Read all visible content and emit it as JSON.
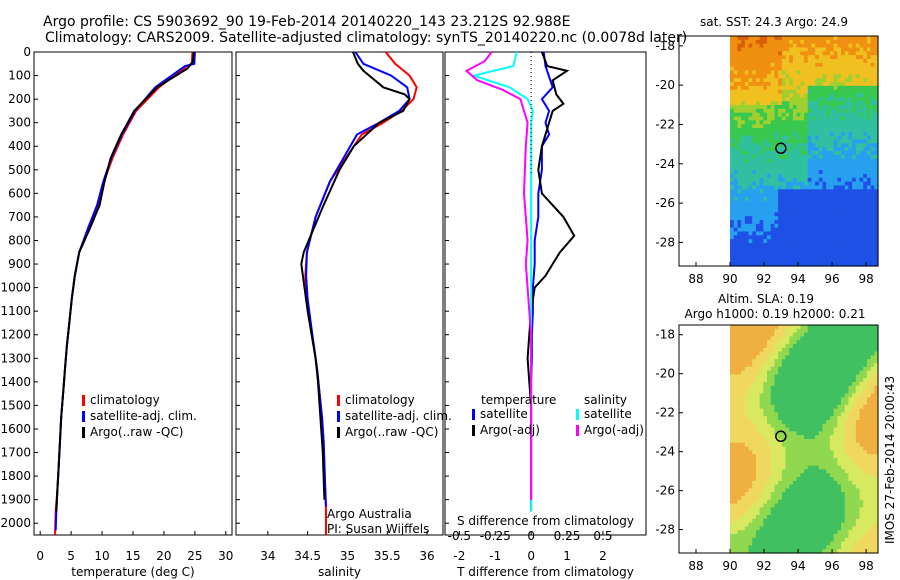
{
  "header": {
    "line1": "Argo profile: CS 5903692_90 19-Feb-2014 20140220_143 23.212S 92.988E",
    "line2": "Climatology: CARS2009. Satellite-adjusted climatology: synTS_20140220.nc (0.0078d later)"
  },
  "side_text": "IMOS 27-Feb-2014 20:00:43",
  "colors": {
    "climatology": "#ff0000",
    "satellite": "#0000ff",
    "argo": "#000000",
    "s_satellite": "#00ffff",
    "s_argo": "#ff00ff"
  },
  "chart_data": [
    {
      "type": "line",
      "id": "temperature",
      "xlabel": "temperature (deg C)",
      "xlim": [
        -1,
        31
      ],
      "xticks": [
        0,
        5,
        10,
        15,
        20,
        25,
        30
      ],
      "ylim": [
        0,
        2050
      ],
      "yticks": [
        0,
        100,
        200,
        300,
        400,
        500,
        600,
        700,
        800,
        900,
        1000,
        1100,
        1200,
        1300,
        1400,
        1500,
        1600,
        1700,
        1800,
        1900,
        2000
      ],
      "legend": [
        "climatology",
        "satellite-adj. clim.",
        "Argo(..raw -QC)"
      ],
      "series": [
        {
          "name": "climatology",
          "color": "#ff0000",
          "x": [
            24.6,
            24.5,
            23.7,
            19.2,
            15.5,
            13.4,
            11.7,
            10.3,
            9.3,
            7.8,
            6.3,
            5.6,
            5.1,
            4.7,
            4.3,
            4.0,
            3.7,
            3.4,
            3.2,
            3.0,
            2.8,
            2.5,
            2.4
          ],
          "y": [
            0,
            50,
            60,
            150,
            250,
            350,
            450,
            550,
            650,
            750,
            850,
            950,
            1050,
            1150,
            1250,
            1350,
            1450,
            1550,
            1650,
            1750,
            1850,
            1950,
            2050
          ]
        },
        {
          "name": "satellite-adj. clim.",
          "color": "#0000ff",
          "x": [
            25.0,
            24.9,
            23.4,
            18.6,
            15.3,
            13.2,
            11.5,
            10.2,
            9.2,
            7.7,
            6.3,
            5.6,
            5.1,
            4.7,
            4.3,
            4.0,
            3.7,
            3.4,
            3.2,
            3.0,
            2.8,
            2.6,
            2.5
          ],
          "y": [
            0,
            50,
            60,
            150,
            250,
            350,
            450,
            550,
            650,
            750,
            850,
            950,
            1050,
            1150,
            1250,
            1350,
            1450,
            1550,
            1650,
            1750,
            1850,
            1950,
            2030
          ]
        },
        {
          "name": "Argo(..raw -QC)",
          "color": "#000000",
          "x": [
            24.8,
            24.7,
            23.8,
            18.9,
            15.2,
            13.1,
            11.4,
            10.4,
            9.6,
            8.0,
            6.3,
            5.6,
            5.1,
            4.7,
            4.3,
            4.0,
            3.7,
            3.4,
            3.2,
            3.0,
            2.8,
            2.6
          ],
          "y": [
            0,
            40,
            70,
            150,
            250,
            350,
            450,
            550,
            650,
            750,
            850,
            950,
            1050,
            1150,
            1250,
            1350,
            1450,
            1550,
            1650,
            1750,
            1850,
            1950
          ]
        }
      ]
    },
    {
      "type": "line",
      "id": "salinity",
      "xlabel": "salinity",
      "xlim": [
        33.6,
        36.2
      ],
      "xticks": [
        34,
        34.5,
        35,
        35.5,
        36
      ],
      "ticklabels": [
        "34",
        "34.5",
        "35",
        "35.5",
        "36"
      ],
      "ylim": [
        0,
        2050
      ],
      "legend": [
        "climatology",
        "satellite-adj. clim.",
        "Argo(..raw -QC)"
      ],
      "annotation": [
        "Argo Australia",
        "PI: Susan Wijffels"
      ],
      "series": [
        {
          "name": "climatology",
          "color": "#ff0000",
          "x": [
            35.48,
            35.6,
            35.78,
            35.87,
            35.83,
            35.68,
            35.45,
            35.18,
            34.98,
            34.78,
            34.6,
            34.49,
            34.47,
            34.49,
            34.53,
            34.58,
            34.62,
            34.65,
            34.68,
            34.7,
            34.71,
            34.72,
            34.73,
            34.73
          ],
          "y": [
            0,
            50,
            100,
            150,
            200,
            250,
            300,
            350,
            450,
            550,
            700,
            850,
            950,
            1050,
            1150,
            1250,
            1350,
            1450,
            1550,
            1650,
            1750,
            1850,
            1950,
            2050
          ]
        },
        {
          "name": "satellite-adj. clim.",
          "color": "#0000ff",
          "x": [
            35.1,
            35.2,
            35.55,
            35.75,
            35.78,
            35.65,
            35.4,
            35.12,
            34.95,
            34.78,
            34.6,
            34.49,
            34.48,
            34.5,
            34.54,
            34.58,
            34.62,
            34.65,
            34.68,
            34.7,
            34.71,
            34.72,
            34.73
          ],
          "y": [
            0,
            50,
            100,
            150,
            200,
            250,
            300,
            350,
            450,
            550,
            700,
            850,
            950,
            1050,
            1150,
            1250,
            1350,
            1450,
            1550,
            1650,
            1750,
            1850,
            1930
          ]
        },
        {
          "name": "Argo(..raw -QC)",
          "color": "#000000",
          "x": [
            35.07,
            35.13,
            35.2,
            35.45,
            35.72,
            35.78,
            35.7,
            35.4,
            35.08,
            34.9,
            34.7,
            34.45,
            34.42,
            34.46,
            34.5,
            34.55,
            34.6,
            34.63,
            34.65,
            34.67,
            34.69,
            34.7,
            34.71
          ],
          "y": [
            0,
            50,
            80,
            150,
            180,
            200,
            250,
            300,
            400,
            500,
            650,
            850,
            900,
            1000,
            1100,
            1200,
            1300,
            1400,
            1500,
            1600,
            1700,
            1800,
            1900
          ]
        }
      ]
    },
    {
      "type": "line",
      "id": "difference",
      "xlabel": "T difference from climatology",
      "title_bottom": "S difference from climatology",
      "xlim": [
        -2.4,
        3.2
      ],
      "xticks": [
        -2,
        -1,
        0,
        1,
        2
      ],
      "s_ticks": [
        "-0.5",
        "-0.25",
        "0",
        "0.25",
        "0.5"
      ],
      "ylim": [
        0,
        2050
      ],
      "legend_headers": [
        "temperature",
        "salinity"
      ],
      "legend_temperature": [
        "satellite",
        "Argo(-adj)"
      ],
      "legend_salinity": [
        "satellite",
        "Argo(-adj)"
      ],
      "series": [
        {
          "name": "T satellite",
          "color": "#0000ff",
          "x": [
            0.35,
            0.4,
            0.6,
            0.3,
            0.5,
            0.4,
            0.5,
            0.3,
            0.3,
            0.2,
            0.2,
            0.1,
            0.1,
            0.05,
            0.05,
            0.02,
            0.02,
            0.0,
            0.0,
            0.0,
            0.0
          ],
          "y": [
            0,
            60,
            150,
            200,
            250,
            300,
            350,
            400,
            500,
            600,
            700,
            800,
            900,
            1000,
            1100,
            1200,
            1300,
            1400,
            1500,
            1700,
            1900
          ]
        },
        {
          "name": "T Argo(-adj)",
          "color": "#000000",
          "x": [
            0.3,
            0.45,
            1.0,
            0.6,
            0.7,
            0.9,
            0.6,
            0.5,
            0.3,
            0.2,
            0.3,
            0.9,
            1.2,
            0.8,
            0.6,
            0.4,
            0.1,
            0.0,
            -0.05,
            -0.1,
            -0.05,
            0.0,
            0.0,
            0.0
          ],
          "y": [
            0,
            60,
            80,
            120,
            180,
            220,
            250,
            300,
            400,
            500,
            600,
            700,
            780,
            850,
            900,
            950,
            1000,
            1100,
            1200,
            1300,
            1400,
            1500,
            1700,
            1950
          ]
        },
        {
          "name": "S satellite",
          "color": "#00ffff",
          "x": [
            -0.4,
            -0.5,
            -1.6,
            -0.6,
            -0.1,
            0.05,
            0.0,
            0.0,
            0.0,
            0.0,
            0.0,
            0.0,
            0.0,
            0.0,
            0.0,
            0.0,
            0.0
          ],
          "y": [
            0,
            60,
            100,
            150,
            200,
            250,
            300,
            400,
            500,
            600,
            800,
            1000,
            1200,
            1400,
            1600,
            1800,
            1950
          ]
        },
        {
          "name": "S Argo(-adj)",
          "color": "#ff00ff",
          "x": [
            -1.1,
            -1.3,
            -1.8,
            -1.5,
            -0.8,
            -0.3,
            -0.1,
            -0.15,
            -0.2,
            -0.1,
            -0.15,
            -0.1,
            -0.05,
            0.0,
            0.0,
            0.0
          ],
          "y": [
            0,
            40,
            80,
            120,
            160,
            200,
            300,
            400,
            600,
            800,
            900,
            1000,
            1100,
            1200,
            1500,
            1900
          ]
        }
      ]
    },
    {
      "type": "heatmap",
      "id": "sst_map",
      "title": "sat. SST: 24.3  Argo: 24.9",
      "xticks": [
        "88",
        "90",
        "92",
        "94",
        "96",
        "98"
      ],
      "yticks": [
        "-18",
        "-20",
        "-22",
        "-24",
        "-26",
        "-28"
      ],
      "xlim": [
        87,
        98.7
      ],
      "ylim": [
        -29.2,
        -17.5
      ],
      "data_lon_range": [
        90,
        98.7
      ],
      "float_position": [
        92.988,
        -23.212
      ]
    },
    {
      "type": "heatmap",
      "id": "sla_map",
      "title": "Altim. SLA: 0.19",
      "subtitle": "Argo h1000: 0.19 h2000: 0.21",
      "xticks": [
        "88",
        "90",
        "92",
        "94",
        "96",
        "98"
      ],
      "yticks": [
        "-18",
        "-20",
        "-22",
        "-24",
        "-26",
        "-28"
      ],
      "xlim": [
        87,
        98.7
      ],
      "ylim": [
        -29.2,
        -17.5
      ],
      "data_lon_range": [
        90,
        98.7
      ],
      "float_position": [
        92.988,
        -23.212
      ]
    }
  ]
}
